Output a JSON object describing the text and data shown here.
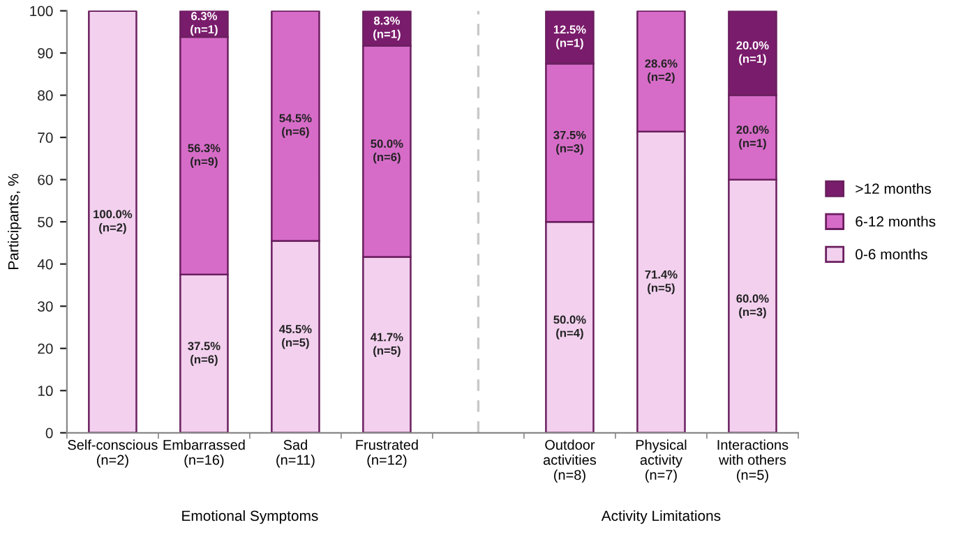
{
  "chart_data": {
    "type": "bar",
    "stacked": true,
    "ylabel": "Participants, %",
    "categories": [
      "Self-conscious\n(n=2)",
      "Embarrassed\n(n=16)",
      "Sad\n(n=11)",
      "Frustrated\n(n=12)",
      null,
      "Outdoor\nactivities\n(n=8)",
      "Physical\nactivity\n(n=7)",
      "Interactions\nwith others\n(n=5)"
    ],
    "series": [
      {
        "name": "0-6 months",
        "color": "#f2d0ee",
        "values": [
          100.0,
          37.5,
          45.5,
          41.7,
          null,
          50.0,
          71.4,
          60.0
        ],
        "value_labels": [
          "100.0%\n(n=2)",
          "37.5%\n(n=6)",
          "45.5%\n(n=5)",
          "41.7%\n(n=5)",
          null,
          "50.0%\n(n=4)",
          "71.4%\n(n=5)",
          "60.0%\n(n=3)"
        ]
      },
      {
        "name": "6-12 months",
        "color": "#d66cc8",
        "values": [
          0,
          56.3,
          54.5,
          50.0,
          null,
          37.5,
          28.6,
          20.0
        ],
        "value_labels": [
          null,
          "56.3%\n(n=9)",
          "54.5%\n(n=6)",
          "50.0%\n(n=6)",
          null,
          "37.5%\n(n=3)",
          "28.6%\n(n=2)",
          "20.0%\n(n=1)"
        ]
      },
      {
        "name": ">12 months",
        "color": "#7a1c6c",
        "values": [
          0,
          6.3,
          0,
          8.3,
          null,
          12.5,
          0,
          20.0
        ],
        "value_labels": [
          null,
          "6.3%\n(n=1)",
          null,
          "8.3%\n(n=1)",
          null,
          "12.5%\n(n=1)",
          null,
          "20.0%\n(n=1)"
        ]
      }
    ],
    "ylim": [
      0,
      100
    ],
    "yticks": [
      0,
      10,
      20,
      30,
      40,
      50,
      60,
      70,
      80,
      90,
      100
    ],
    "annotations": [
      "Emotional Symptoms",
      "Activity Limitations"
    ],
    "legend": "right"
  }
}
